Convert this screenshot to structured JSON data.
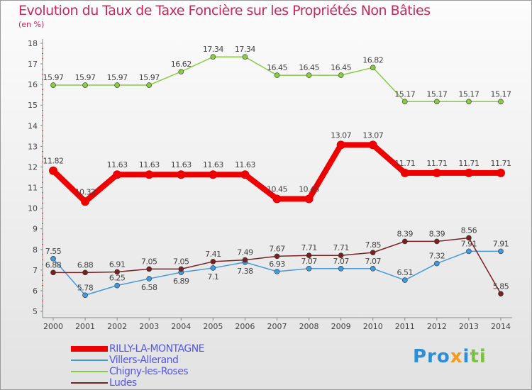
{
  "chart_data": {
    "type": "line",
    "title": "Evolution du Taux de Taxe Foncière sur les Propriétés Non Bâties",
    "ylabel": "(en %)",
    "xlabel": "",
    "ylim": [
      5,
      18
    ],
    "yticks": [
      "5",
      "6",
      "7",
      "8",
      "9",
      "10",
      "11",
      "12",
      "13",
      "14",
      "15",
      "16",
      "17",
      "18"
    ],
    "x": [
      "2000",
      "2001",
      "2002",
      "2003",
      "2004",
      "2005",
      "2006",
      "2007",
      "2008",
      "2009",
      "2010",
      "2011",
      "2012",
      "2013",
      "2014"
    ],
    "grid": false,
    "legend_position": "bottom-left",
    "series": [
      {
        "name": "RILLY-LA-MONTAGNE",
        "color": "#ee0000",
        "width": 8,
        "radius": 6,
        "values": [
          11.82,
          10.32,
          11.63,
          11.63,
          11.63,
          11.63,
          11.63,
          10.45,
          10.45,
          13.07,
          13.07,
          11.71,
          11.71,
          11.71,
          11.71
        ]
      },
      {
        "name": "Villers-Allerand",
        "color": "#4499dd",
        "width": 1.5,
        "radius": 3.5,
        "values": [
          7.55,
          5.78,
          6.25,
          6.58,
          6.89,
          7.1,
          7.38,
          6.93,
          7.07,
          7.07,
          7.07,
          6.51,
          7.32,
          7.91,
          7.91
        ]
      },
      {
        "name": "Chigny-les-Roses",
        "color": "#88cc44",
        "width": 1.5,
        "radius": 3.5,
        "values": [
          15.97,
          15.97,
          15.97,
          15.97,
          16.62,
          17.34,
          17.34,
          16.45,
          16.45,
          16.45,
          16.82,
          15.17,
          15.17,
          15.17,
          15.17
        ]
      },
      {
        "name": "Ludes",
        "color": "#772222",
        "width": 1.5,
        "radius": 3.5,
        "values": [
          6.88,
          6.88,
          6.91,
          7.05,
          7.05,
          7.41,
          7.49,
          7.67,
          7.71,
          7.71,
          7.85,
          8.39,
          8.39,
          8.56,
          5.85
        ]
      }
    ]
  },
  "logo": {
    "text": "Proxiti"
  }
}
